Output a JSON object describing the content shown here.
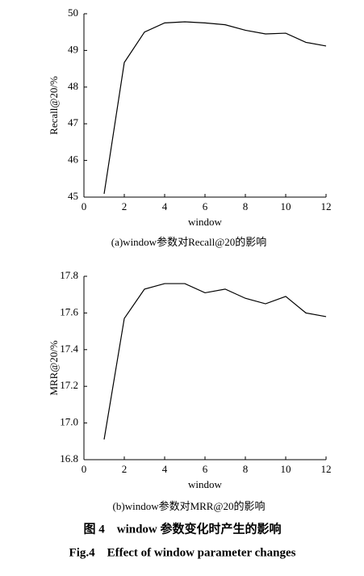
{
  "chart_data": [
    {
      "type": "line",
      "caption": "(a)window参数对Recall@20的影响",
      "xlabel": "window",
      "ylabel": "Recall@20/%",
      "x": [
        1,
        2,
        3,
        4,
        5,
        6,
        7,
        8,
        9,
        10,
        11,
        12
      ],
      "values": [
        45.09,
        48.67,
        49.5,
        49.75,
        49.78,
        49.75,
        49.7,
        49.55,
        49.45,
        49.47,
        49.22,
        49.12
      ],
      "color": "#000000",
      "xlim": [
        0,
        12
      ],
      "xticks": [
        0,
        2,
        4,
        6,
        8,
        10,
        12
      ],
      "ylim": [
        45,
        50
      ],
      "yticks": [
        45,
        46,
        47,
        48,
        49,
        50
      ]
    },
    {
      "type": "line",
      "caption": "(b)window参数对MRR@20的影响",
      "xlabel": "window",
      "ylabel": "MRR@20/%",
      "x": [
        1,
        2,
        3,
        4,
        5,
        6,
        7,
        8,
        9,
        10,
        11,
        12
      ],
      "values": [
        16.91,
        17.57,
        17.73,
        17.76,
        17.76,
        17.71,
        17.73,
        17.68,
        17.65,
        17.69,
        17.6,
        17.58
      ],
      "color": "#000000",
      "xlim": [
        0,
        12
      ],
      "xticks": [
        0,
        2,
        4,
        6,
        8,
        10,
        12
      ],
      "ylim": [
        16.8,
        17.8
      ],
      "yticks": [
        16.8,
        {
          "value": 17,
          "label": "17.0"
        },
        17.2,
        17.4,
        17.6,
        17.8
      ]
    }
  ],
  "figure_caption": {
    "cn": "图 4　window 参数变化时产生的影响",
    "en": "Fig.4　Effect of window parameter changes"
  }
}
